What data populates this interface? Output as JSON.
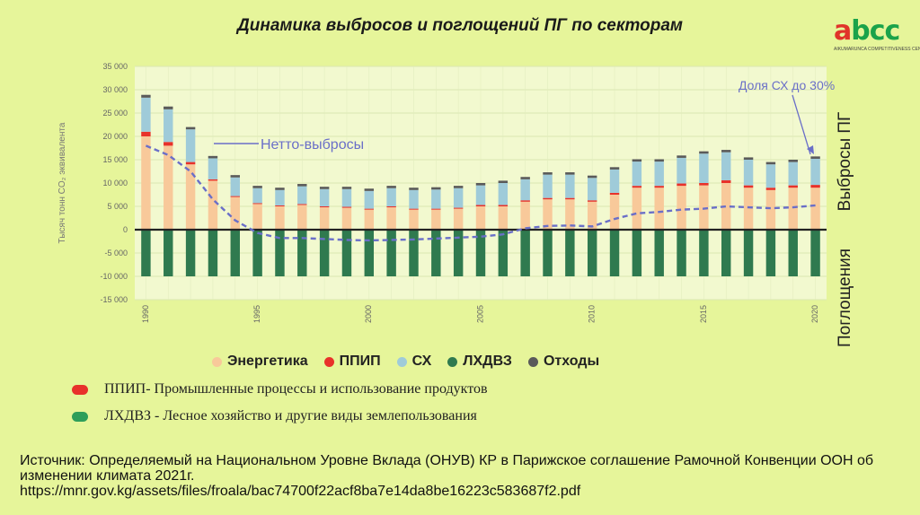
{
  "page": {
    "title": "Динамика выбросов и поглощений ПГ по секторам",
    "logo_text": "abcc",
    "logo_sub": "AIKUMARUNCA COMPETITIVENESS CENTER"
  },
  "notes": [
    {
      "text": "ППИП- Промышленные процессы и использование продуктов",
      "color": "#e8312a"
    },
    {
      "text": "ЛХДВЗ - Лесное хозяйство и другие виды землепользования",
      "color": "#2e9e5a"
    }
  ],
  "source": {
    "line1": "Источник: Определяемый на Национальном Уровне Вклада (ОНУВ) КР в Парижское соглашение Рамочной Конвенции ООН об изменении климата 2021г.",
    "line2": "https://mnr.gov.kg/assets/files/froala/bac74700f22acf8ba7e14da8be16223c583687f2.pdf"
  },
  "chart_data": {
    "type": "bar",
    "ylabel": "Тысяч тонн CO₂ эквивалента",
    "ylim": [
      -15000,
      35000
    ],
    "yticks": [
      "35 000",
      "30 000",
      "25 000",
      "20 000",
      "15 000",
      "10 000",
      "5 000",
      "0",
      "-5 000",
      "-10 000",
      "-15 000"
    ],
    "ytick_values": [
      35000,
      30000,
      25000,
      20000,
      15000,
      10000,
      5000,
      0,
      -5000,
      -10000,
      -15000
    ],
    "x": [
      1990,
      1991,
      1992,
      1993,
      1994,
      1995,
      1996,
      1997,
      1998,
      1999,
      2000,
      2001,
      2002,
      2003,
      2004,
      2005,
      2006,
      2007,
      2008,
      2009,
      2010,
      2011,
      2012,
      2013,
      2014,
      2015,
      2016,
      2017,
      2018,
      2019,
      2020
    ],
    "xticks": [
      "1990",
      "1995",
      "2000",
      "2005",
      "2010",
      "2015",
      "2020"
    ],
    "xtick_values": [
      1990,
      1995,
      2000,
      2005,
      2010,
      2015,
      2020
    ],
    "grid": true,
    "legend_position": "bottom",
    "series": [
      {
        "name": "Энергетика",
        "color": "#f8c99a",
        "values": [
          20000,
          18000,
          14000,
          10500,
          7000,
          5500,
          5000,
          5300,
          4800,
          4700,
          4300,
          4800,
          4300,
          4300,
          4500,
          5000,
          5000,
          6000,
          6500,
          6500,
          6000,
          7500,
          9000,
          9000,
          9400,
          9500,
          10000,
          9000,
          8500,
          9000,
          9000
        ]
      },
      {
        "name": "ППИП",
        "color": "#e8312a",
        "values": [
          1000,
          800,
          500,
          300,
          200,
          200,
          200,
          200,
          200,
          200,
          200,
          200,
          200,
          200,
          200,
          300,
          300,
          300,
          300,
          300,
          300,
          400,
          400,
          400,
          500,
          500,
          600,
          500,
          500,
          500,
          600
        ]
      },
      {
        "name": "СХ",
        "color": "#9fcbd9",
        "values": [
          7300,
          7000,
          7000,
          4500,
          4000,
          3200,
          3300,
          3800,
          3700,
          3800,
          3800,
          3900,
          4000,
          4100,
          4200,
          4200,
          4700,
          4500,
          5000,
          5000,
          4800,
          5000,
          5200,
          5200,
          5500,
          6300,
          6000,
          5500,
          5000,
          5000,
          5600
        ]
      },
      {
        "name": "ЛХДВЗ",
        "color": "#2f7a4f",
        "values": [
          -10000,
          -10000,
          -10000,
          -10000,
          -10000,
          -10000,
          -10000,
          -10000,
          -10000,
          -10000,
          -10000,
          -10000,
          -10000,
          -10000,
          -10000,
          -10000,
          -10000,
          -10000,
          -10000,
          -10000,
          -10000,
          -10000,
          -10000,
          -10000,
          -10000,
          -10000,
          -10000,
          -10000,
          -10000,
          -10000,
          -10000
        ]
      },
      {
        "name": "Отходы",
        "color": "#5a5a5a",
        "values": [
          600,
          600,
          500,
          500,
          500,
          500,
          500,
          500,
          500,
          500,
          500,
          500,
          500,
          500,
          500,
          500,
          500,
          500,
          500,
          500,
          500,
          500,
          500,
          500,
          500,
          500,
          500,
          500,
          500,
          500,
          500
        ]
      }
    ],
    "net_series": {
      "name": "Нетто-выбросы",
      "color": "#6a6fc8",
      "values": [
        18000,
        16000,
        12500,
        6500,
        2000,
        -700,
        -1800,
        -1800,
        -2000,
        -2200,
        -2300,
        -2200,
        -2100,
        -1900,
        -1700,
        -1500,
        -1000,
        300,
        800,
        900,
        700,
        2300,
        3500,
        3800,
        4300,
        4500,
        5000,
        4800,
        4600,
        4800,
        5200
      ]
    },
    "annotations": {
      "net_label": "Нетто-выбросы",
      "share_label": "Доля СХ до 30%",
      "emissions_label": "Выбросы ПГ",
      "removals_label": "Поглощения"
    }
  }
}
